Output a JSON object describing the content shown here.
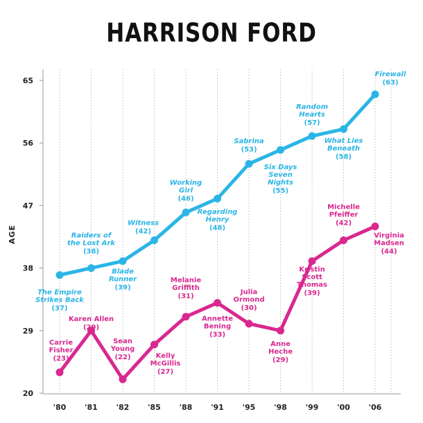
{
  "chart_data": {
    "type": "line",
    "title": "HARRISON FORD",
    "ylabel": "AGE",
    "xlabel": "",
    "categories": [
      "'80",
      "'81",
      "'82",
      "'85",
      "'88",
      "'91",
      "'95",
      "'98",
      "'99",
      "'00",
      "'06"
    ],
    "y_ticks": [
      20,
      29,
      38,
      47,
      56,
      65
    ],
    "ylim": [
      20,
      66
    ],
    "grid": "vertical dotted",
    "series": [
      {
        "color": "#2BB5E6",
        "values": [
          37,
          38,
          39,
          42,
          46,
          48,
          53,
          55,
          57,
          58,
          63
        ],
        "labels": [
          {
            "lines": [
              "The Empire",
              "Strikes Back"
            ],
            "age": "(37)"
          },
          {
            "lines": [
              "Raiders of",
              "the Lost Ark"
            ],
            "age": "(38)"
          },
          {
            "lines": [
              "Blade",
              "Runner"
            ],
            "age": "(39)"
          },
          {
            "lines": [
              "Witness"
            ],
            "age": "(42)"
          },
          {
            "lines": [
              "Working",
              "Girl"
            ],
            "age": "(46)"
          },
          {
            "lines": [
              "Regarding",
              "Henry"
            ],
            "age": "(48)"
          },
          {
            "lines": [
              "Sabrina"
            ],
            "age": "(53)"
          },
          {
            "lines": [
              "Six Days",
              "Seven",
              "Nights"
            ],
            "age": "(55)"
          },
          {
            "lines": [
              "Random",
              "Hearts"
            ],
            "age": "(57)"
          },
          {
            "lines": [
              "What Lies",
              "Beneath"
            ],
            "age": "(58)"
          },
          {
            "lines": [
              "Firewall"
            ],
            "age": "(63)"
          }
        ]
      },
      {
        "color": "#D9288F",
        "values": [
          23,
          29,
          22,
          27,
          31,
          33,
          30,
          29,
          39,
          42,
          44
        ],
        "labels": [
          {
            "lines": [
              "Carrie",
              "Fisher"
            ],
            "age": "(23)"
          },
          {
            "lines": [
              "Karen Allen"
            ],
            "age": "(29)"
          },
          {
            "lines": [
              "Sean",
              "Young"
            ],
            "age": "(22)"
          },
          {
            "lines": [
              "Kelly",
              "McGillis"
            ],
            "age": "(27)"
          },
          {
            "lines": [
              "Melanie",
              "Griffith"
            ],
            "age": "(31)"
          },
          {
            "lines": [
              "Annette",
              "Bening"
            ],
            "age": "(33)"
          },
          {
            "lines": [
              "Julia",
              "Ormond"
            ],
            "age": "(30)"
          },
          {
            "lines": [
              "Anne",
              "Heche"
            ],
            "age": "(29)"
          },
          {
            "lines": [
              "Kristin",
              "Scott",
              "Thomas"
            ],
            "age": "(39)"
          },
          {
            "lines": [
              "Michelle",
              "Pfeiffer"
            ],
            "age": "(42)"
          },
          {
            "lines": [
              "Virginia",
              "Madsen"
            ],
            "age": "(44)"
          }
        ]
      }
    ]
  }
}
